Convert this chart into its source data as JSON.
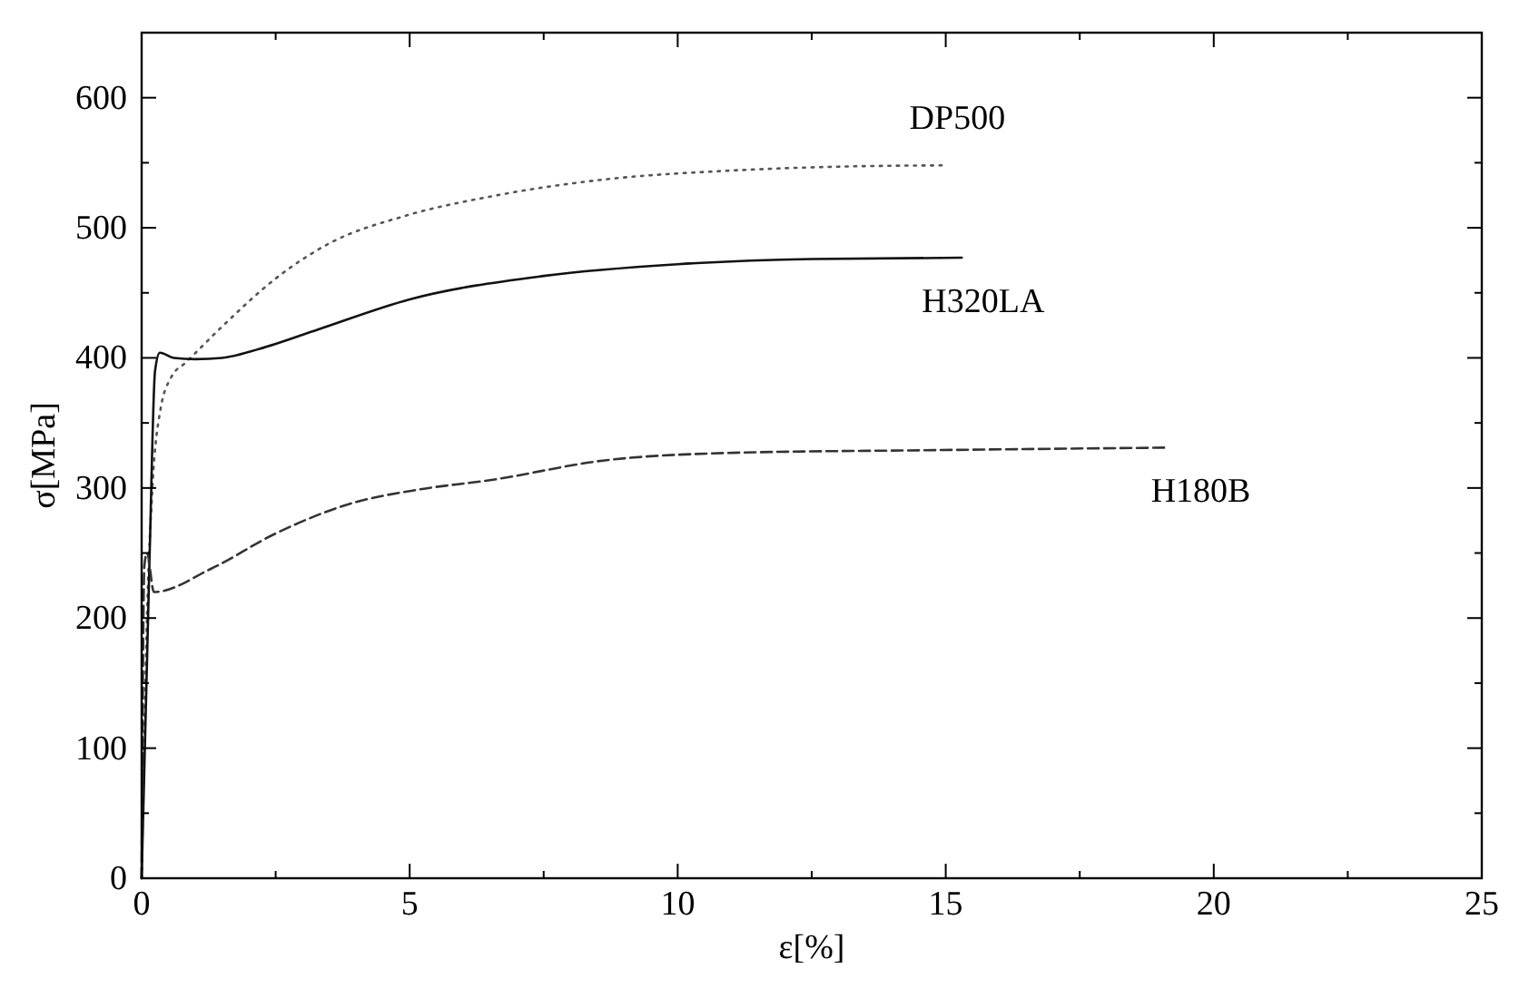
{
  "chart_data": {
    "type": "line",
    "xlabel": "ε[%]",
    "ylabel": "σ[MPa]",
    "xlim": [
      0,
      25
    ],
    "ylim": [
      0,
      650
    ],
    "marker": "none",
    "grid": false,
    "xticks": [
      0,
      {
        "value": 2.5,
        "label": null
      },
      5,
      {
        "value": 7.5,
        "label": null
      },
      10,
      {
        "value": 12.5,
        "label": null
      },
      15,
      {
        "value": 17.5,
        "label": null
      },
      20,
      {
        "value": 22.5,
        "label": null
      },
      25
    ],
    "yticks": [
      0,
      {
        "value": 50,
        "label": null
      },
      100,
      {
        "value": 150,
        "label": null
      },
      200,
      {
        "value": 250,
        "label": null
      },
      300,
      {
        "value": 350,
        "label": null
      },
      400,
      {
        "value": 450,
        "label": null
      },
      500,
      {
        "value": 550,
        "label": null
      },
      600,
      {
        "value": 650,
        "label": null
      }
    ],
    "series": [
      {
        "name": "DP500",
        "color": "#555555",
        "line_style": "dotted",
        "x": [
          0,
          0.1,
          0.2,
          0.35,
          0.55,
          0.84,
          1.5,
          2.5,
          3.5,
          4.9,
          6.5,
          8.6,
          11,
          13,
          15
        ],
        "values": [
          0,
          200,
          300,
          360,
          385,
          397,
          424,
          461,
          488,
          509,
          524,
          537,
          544,
          547,
          548
        ]
      },
      {
        "name": "H320LA",
        "color": "#111111",
        "line_style": "solid",
        "x": [
          0,
          0.15,
          0.25,
          0.34,
          0.6,
          1,
          1.5,
          2.2,
          3.3,
          5,
          7.5,
          10,
          12.5,
          15.3
        ],
        "values": [
          0,
          250,
          390,
          404,
          400,
          399,
          400,
          407,
          422,
          445,
          463,
          472,
          476,
          477
        ]
      },
      {
        "name": "H180B",
        "color": "#333333",
        "line_style": "dashed",
        "x": [
          0,
          0.05,
          0.1,
          0.23,
          1.3,
          2.5,
          3.9,
          5.2,
          6.5,
          8.6,
          11,
          14.6,
          19.1
        ],
        "values": [
          0,
          240,
          250,
          220,
          238,
          265,
          288,
          299,
          306,
          321,
          327,
          329,
          331
        ]
      }
    ]
  }
}
